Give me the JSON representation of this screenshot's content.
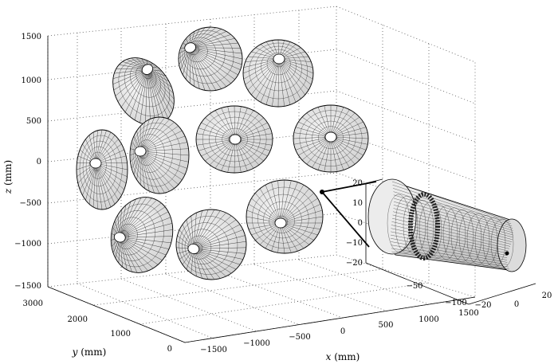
{
  "axes": {
    "z_label": "z",
    "z_unit": "(mm)",
    "y_label": "y",
    "y_unit": "(mm)",
    "x_label": "x",
    "x_unit": "(mm)",
    "z_ticks": [
      "1500",
      "1000",
      "500",
      "0",
      "−500",
      "−1000",
      "−1500"
    ],
    "y_ticks": [
      "3000",
      "2000",
      "1000",
      "0"
    ],
    "x_ticks": [
      "−1500",
      "−1000",
      "−500",
      "0",
      "500",
      "1000",
      "1500"
    ]
  },
  "inset": {
    "z_ticks": [
      "20",
      "10",
      "0",
      "−10",
      "−20"
    ],
    "x_ticks": [
      "−50",
      "−100"
    ],
    "y_ticks": [
      "−20",
      "0",
      "20"
    ]
  },
  "grid": true,
  "colors": {
    "mesh": "#111111",
    "surface": "#e6e6e6",
    "background": "#ffffff"
  }
}
